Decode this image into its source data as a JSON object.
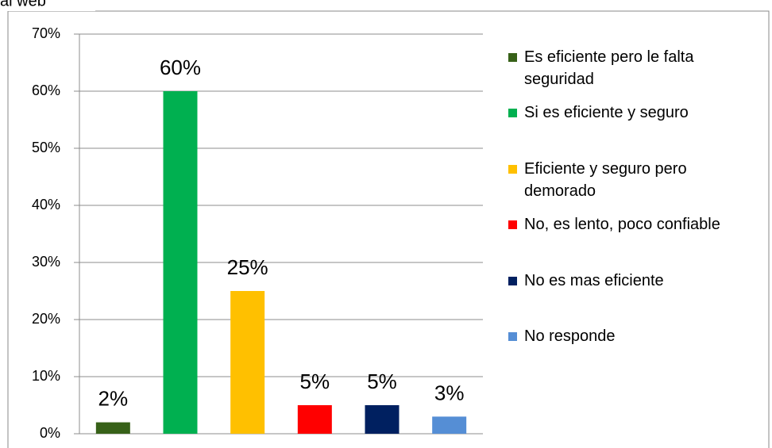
{
  "chart_data": {
    "type": "bar",
    "title": "al web",
    "categories": [
      "Es eficiente pero le falta seguridad",
      "Si es eficiente y seguro",
      "Eficiente y seguro pero demorado",
      "No, es lento, poco confiable",
      "No es mas eficiente",
      "No responde"
    ],
    "values": [
      2,
      60,
      25,
      5,
      5,
      3
    ],
    "value_labels": [
      "2%",
      "60%",
      "25%",
      "5%",
      "5%",
      "3%"
    ],
    "colors": [
      "#376118",
      "#00b050",
      "#ffc000",
      "#ff0000",
      "#002060",
      "#558ed5"
    ],
    "ylim": [
      0,
      70
    ],
    "yticks": [
      {
        "value": 0,
        "label": "0%"
      },
      {
        "value": 10,
        "label": "10%"
      },
      {
        "value": 20,
        "label": "20%"
      },
      {
        "value": 30,
        "label": "30%"
      },
      {
        "value": 40,
        "label": "40%"
      },
      {
        "value": 50,
        "label": "50%"
      },
      {
        "value": 60,
        "label": "60%"
      },
      {
        "value": 70,
        "label": "70%"
      }
    ],
    "grid": true,
    "legend": "right"
  }
}
